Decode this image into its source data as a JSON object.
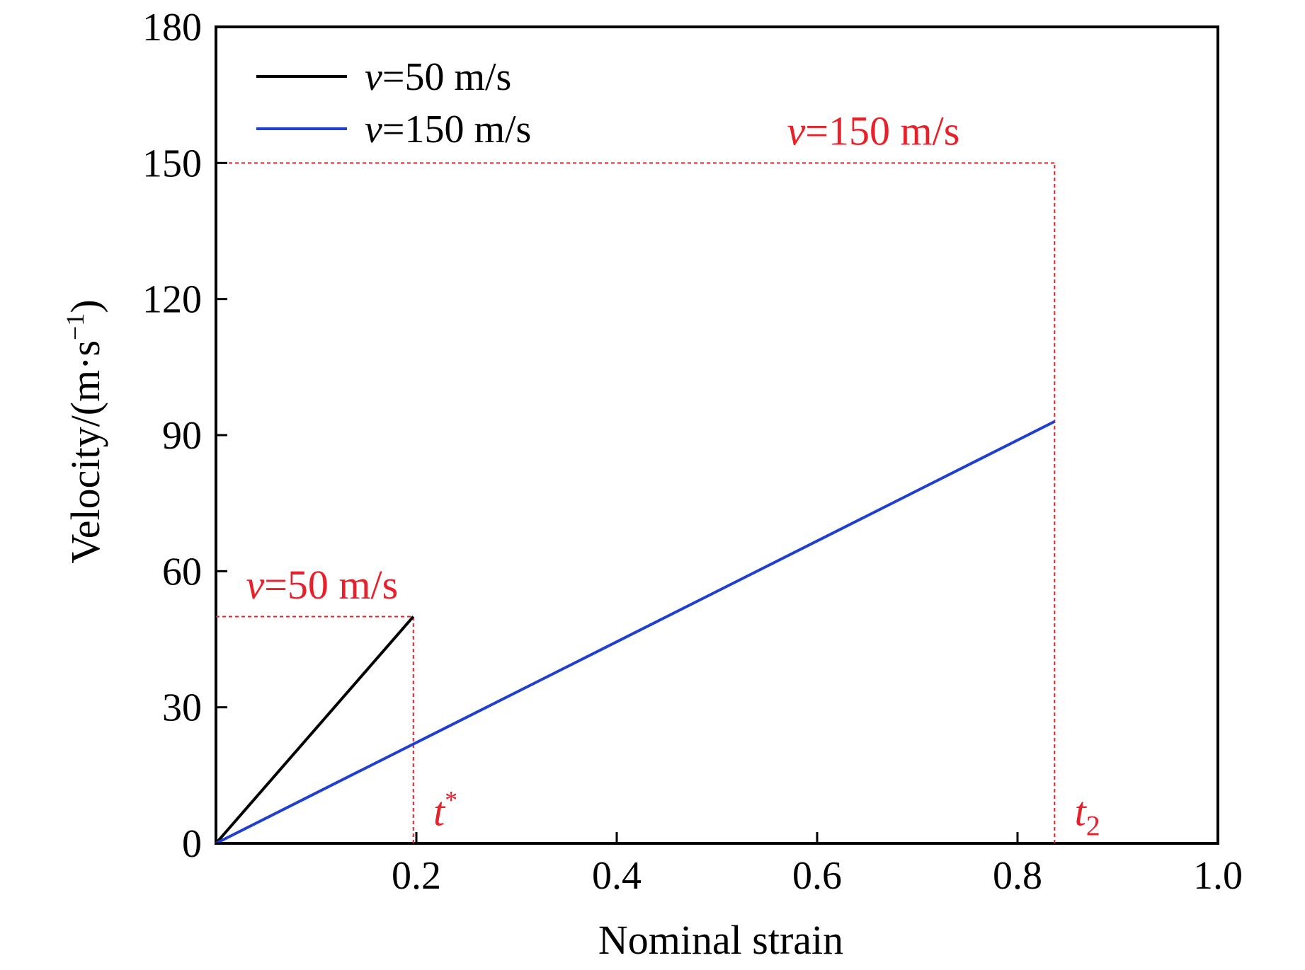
{
  "chart_data": {
    "type": "line",
    "title": "",
    "xlabel": "Nominal strain",
    "ylabel": {
      "main": "Velocity/(m·s",
      "sup": "−1",
      "close": ")"
    },
    "xlim": [
      0,
      1.0
    ],
    "ylim": [
      0,
      180
    ],
    "xticks": [
      0.2,
      0.4,
      0.6,
      0.8,
      1.0
    ],
    "xtick_labels": [
      "0.2",
      "0.4",
      "0.6",
      "0.8",
      "1.0"
    ],
    "yticks": [
      0,
      30,
      60,
      90,
      120,
      150,
      180
    ],
    "ytick_labels": [
      "0",
      "30",
      "60",
      "90",
      "120",
      "150",
      "180"
    ],
    "grid": false,
    "legend_position": "top-left",
    "series": [
      {
        "name": {
          "var": "v",
          "rest": "=50 m/s"
        },
        "color": "#000000",
        "x": [
          0.0,
          0.197
        ],
        "y": [
          0,
          50
        ]
      },
      {
        "name": {
          "var": "v",
          "rest": "=150 m/s"
        },
        "color": "#1f3fd1",
        "x": [
          0.0,
          0.837
        ],
        "y": [
          0,
          93
        ]
      }
    ],
    "reference_lines": {
      "color": "#e8202a",
      "segments": [
        {
          "x": [
            0,
            0.197
          ],
          "y": [
            50,
            50
          ]
        },
        {
          "x": [
            0.197,
            0.197
          ],
          "y": [
            0,
            50
          ]
        },
        {
          "x": [
            0,
            0.837
          ],
          "y": [
            150,
            150
          ]
        },
        {
          "x": [
            0.837,
            0.837
          ],
          "y": [
            0,
            150
          ]
        }
      ]
    },
    "annotations": [
      {
        "id": "anno-v50",
        "var": "v",
        "rest": "=50 m/s",
        "x": 0.03,
        "y": 54
      },
      {
        "id": "anno-v150",
        "var": "v",
        "rest": "=150 m/s",
        "x": 0.57,
        "y": 154
      },
      {
        "id": "anno-tstar",
        "var": "t",
        "sup": "*",
        "x": 0.217,
        "y": 4
      },
      {
        "id": "anno-t2",
        "var": "t",
        "sub": "2",
        "x": 0.857,
        "y": 4
      }
    ]
  }
}
